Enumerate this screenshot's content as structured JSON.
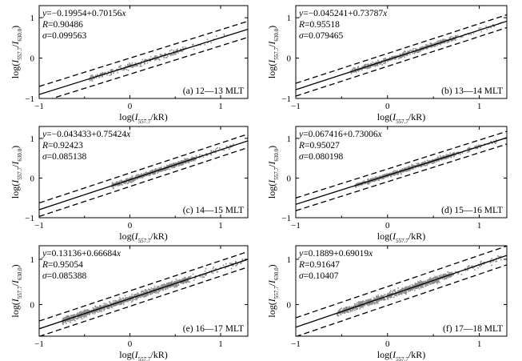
{
  "chart_data": [
    {
      "type": "scatter",
      "panel_label": "(a) 12—13 MLT",
      "xlabel": "log(I557.7/kR)",
      "ylabel": "log(I557.7/I630.0)",
      "xlim": [
        -1,
        1.3
      ],
      "ylim": [
        -1,
        1.3
      ],
      "xticks": [
        -1,
        0,
        1
      ],
      "yticks": [
        -1,
        0,
        1
      ],
      "fit": {
        "intercept": -0.19954,
        "slope": 0.70156,
        "R": 0.90486,
        "sigma": 0.099563
      },
      "annotation": {
        "eq": "y=−0.19954+0.70156x",
        "r": "R=0.90486",
        "s": "σ=0.099563"
      },
      "point_range": [
        -0.45,
        1.1
      ],
      "point_count": 260
    },
    {
      "type": "scatter",
      "panel_label": "(b) 13—14 MLT",
      "xlabel": "log(I557.7/kR)",
      "ylabel": "log(I557.7/I630.0)",
      "xlim": [
        -1,
        1.3
      ],
      "ylim": [
        -1,
        1.3
      ],
      "xticks": [
        -1,
        0,
        1
      ],
      "yticks": [
        -1,
        0,
        1
      ],
      "fit": {
        "intercept": -0.045241,
        "slope": 0.73787,
        "R": 0.95518,
        "sigma": 0.079465
      },
      "annotation": {
        "eq": "y=−0.045241+0.73787x",
        "r": "R=0.95518",
        "s": "σ=0.079465"
      },
      "point_range": [
        -0.4,
        1.25
      ],
      "point_count": 520
    },
    {
      "type": "scatter",
      "panel_label": "(c) 14—15 MLT",
      "xlabel": "log(I557.7/kR)",
      "ylabel": "log(I557.7/I630.0)",
      "xlim": [
        -1,
        1.3
      ],
      "ylim": [
        -1,
        1.3
      ],
      "xticks": [
        -1,
        0,
        1
      ],
      "yticks": [
        -1,
        0,
        1
      ],
      "fit": {
        "intercept": -0.043433,
        "slope": 0.75424,
        "R": 0.92423,
        "sigma": 0.085138
      },
      "annotation": {
        "eq": "y=−0.043433+0.75424x",
        "r": "R=0.92423",
        "s": "σ=0.085138"
      },
      "point_range": [
        -0.2,
        1.15
      ],
      "point_count": 620
    },
    {
      "type": "scatter",
      "panel_label": "(d) 15—16 MLT",
      "xlabel": "log(I557.7/kR)",
      "ylabel": "log(I557.7/I630.0)",
      "xlim": [
        -1,
        1.3
      ],
      "ylim": [
        -1,
        1.3
      ],
      "xticks": [
        -1,
        0,
        1
      ],
      "yticks": [
        -1,
        0,
        1
      ],
      "fit": {
        "intercept": 0.067416,
        "slope": 0.73006,
        "R": 0.95027,
        "sigma": 0.080198
      },
      "annotation": {
        "eq": "y=0.067416+0.73006x",
        "r": "R=0.95027",
        "s": "σ=0.080198"
      },
      "point_range": [
        -0.35,
        1.2
      ],
      "point_count": 680
    },
    {
      "type": "scatter",
      "panel_label": "(e) 16—17 MLT",
      "xlabel": "log(I557.7/kR)",
      "ylabel": "log(I557.7/I630.0)",
      "xlim": [
        -1,
        1.3
      ],
      "ylim": [
        -0.7,
        1.3
      ],
      "xticks": [
        -1,
        0,
        1
      ],
      "yticks": [
        0,
        1
      ],
      "fit": {
        "intercept": 0.13136,
        "slope": 0.66684,
        "R": 0.95054,
        "sigma": 0.085388
      },
      "annotation": {
        "eq": "y=0.13136+0.66684x",
        "r": "R=0.95054",
        "s": "σ=0.085388"
      },
      "point_range": [
        -0.75,
        1.25
      ],
      "point_count": 1100
    },
    {
      "type": "scatter",
      "panel_label": "(f) 17—18 MLT",
      "xlabel": "log(I557.7/kR)",
      "ylabel": "log(I557.7/I630.0)",
      "xlim": [
        -1,
        1.3
      ],
      "ylim": [
        -0.7,
        1.3
      ],
      "xticks": [
        -1,
        0,
        1
      ],
      "yticks": [
        0,
        1
      ],
      "fit": {
        "intercept": 0.1889,
        "slope": 0.69019,
        "R": 0.91647,
        "sigma": 0.10407
      },
      "annotation": {
        "eq": "y=0.1889+0.69019x",
        "r": "R=0.91647",
        "s": "σ=0.10407"
      },
      "point_range": [
        -0.55,
        1.25
      ],
      "point_count": 1000
    }
  ]
}
